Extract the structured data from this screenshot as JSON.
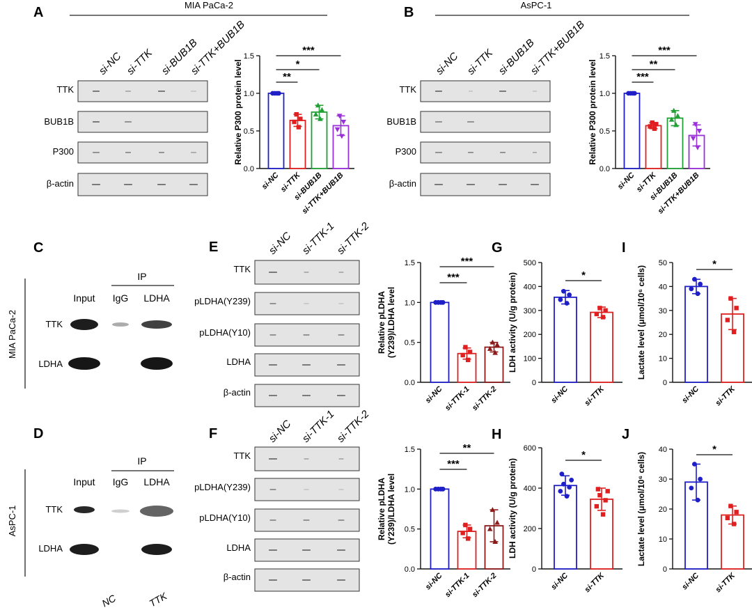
{
  "panels": {
    "A": {
      "letter": "A",
      "cell_line": "MIA PaCa-2",
      "lanes": [
        "si-NC",
        "si-TTK",
        "si-BUB1B",
        "si-TTK+BUB1B"
      ],
      "blots": [
        "TTK",
        "BUB1B",
        "P300",
        "β-actin"
      ]
    },
    "B": {
      "letter": "B",
      "cell_line": "AsPC-1",
      "lanes": [
        "si-NC",
        "si-TTK",
        "si-BUB1B",
        "si-TTK+BUB1B"
      ],
      "blots": [
        "TTK",
        "BUB1B",
        "P300",
        "β-actin"
      ]
    },
    "C": {
      "letter": "C",
      "cell_line": "MIA PaCa-2",
      "ip_label": "IP",
      "lanes": [
        "Input",
        "IgG",
        "LDHA"
      ],
      "blots": [
        "TTK",
        "LDHA"
      ]
    },
    "D": {
      "letter": "D",
      "cell_line": "AsPC-1",
      "ip_label": "IP",
      "lanes": [
        "Input",
        "IgG",
        "LDHA"
      ],
      "blots": [
        "TTK",
        "LDHA"
      ]
    },
    "E": {
      "letter": "E",
      "lanes": [
        "si-NC",
        "si-TTK-1",
        "si-TTK-2"
      ],
      "blots": [
        "TTK",
        "pLDHA(Y239)",
        "pLDHA(Y10)",
        "LDHA",
        "β-actin"
      ]
    },
    "F": {
      "letter": "F",
      "lanes": [
        "si-NC",
        "si-TTK-1",
        "si-TTK-2"
      ],
      "blots": [
        "TTK",
        "pLDHA(Y239)",
        "pLDHA(Y10)",
        "LDHA",
        "β-actin"
      ]
    },
    "G": {
      "letter": "G"
    },
    "H": {
      "letter": "H"
    },
    "I": {
      "letter": "I"
    },
    "J": {
      "letter": "J"
    }
  },
  "bottom_cut_labels": [
    "NC",
    "TTK"
  ],
  "colors": {
    "nc": "#1f1fc8",
    "ttk": "#e02020",
    "bub1b": "#22a035",
    "combo": "#9a30d8",
    "ttk2": "#8b1a1a"
  },
  "chart_data": [
    {
      "panel": "A",
      "type": "bar",
      "ylabel": "Relative P300 protein level",
      "ylim": [
        0,
        1.5
      ],
      "yticks": [
        "0.0",
        "0.5",
        "1.0",
        "1.5"
      ],
      "categories": [
        "si-NC",
        "si-TTK",
        "si-BUB1B",
        "si-TTK+BUB1B"
      ],
      "values": [
        1.0,
        0.64,
        0.75,
        0.57
      ],
      "errors": [
        0,
        0.08,
        0.09,
        0.13
      ],
      "points": [
        [
          1,
          1,
          1,
          1
        ],
        [
          0.55,
          0.62,
          0.66,
          0.72
        ],
        [
          0.66,
          0.72,
          0.78,
          0.84
        ],
        [
          0.43,
          0.52,
          0.62,
          0.7
        ]
      ],
      "significance": [
        {
          "from": 0,
          "to": 1,
          "label": "**"
        },
        {
          "from": 0,
          "to": 2,
          "label": "*"
        },
        {
          "from": 0,
          "to": 3,
          "label": "***"
        }
      ]
    },
    {
      "panel": "B",
      "type": "bar",
      "ylabel": "Relative P300 protein level",
      "ylim": [
        0,
        1.5
      ],
      "yticks": [
        "0.0",
        "0.5",
        "1.0",
        "1.5"
      ],
      "categories": [
        "si-NC",
        "si-TTK",
        "si-BUB1B",
        "si-TTK+BUB1B"
      ],
      "values": [
        1.0,
        0.57,
        0.67,
        0.44
      ],
      "errors": [
        0,
        0.04,
        0.1,
        0.14
      ],
      "points": [
        [
          1,
          1,
          1,
          1
        ],
        [
          0.53,
          0.56,
          0.59,
          0.61
        ],
        [
          0.58,
          0.65,
          0.7,
          0.77
        ],
        [
          0.28,
          0.4,
          0.5,
          0.59
        ]
      ],
      "significance": [
        {
          "from": 0,
          "to": 1,
          "label": "***"
        },
        {
          "from": 0,
          "to": 2,
          "label": "**"
        },
        {
          "from": 0,
          "to": 3,
          "label": "***"
        }
      ]
    },
    {
      "panel": "E",
      "type": "bar",
      "ylabel": "Relative pLDHA (Y239)/LDHA level",
      "ylim": [
        0,
        1.5
      ],
      "yticks": [
        "0.0",
        "0.5",
        "1.0",
        "1.5"
      ],
      "categories": [
        "si-NC",
        "si-TTK-1",
        "si-TTK-2"
      ],
      "values": [
        1.0,
        0.36,
        0.44
      ],
      "errors": [
        0,
        0.07,
        0.06
      ],
      "points": [
        [
          1,
          1,
          1,
          1
        ],
        [
          0.28,
          0.34,
          0.38,
          0.44
        ],
        [
          0.37,
          0.42,
          0.47,
          0.5
        ]
      ],
      "significance": [
        {
          "from": 0,
          "to": 1,
          "label": "***"
        },
        {
          "from": 0,
          "to": 2,
          "label": "***"
        }
      ]
    },
    {
      "panel": "F",
      "type": "bar",
      "ylabel": "Relative pLDHA (Y239)/LDHA level",
      "ylim": [
        0,
        1.5
      ],
      "yticks": [
        "0.0",
        "0.5",
        "1.0",
        "1.5"
      ],
      "categories": [
        "si-NC",
        "si-TTK-1",
        "si-TTK-2"
      ],
      "values": [
        1.0,
        0.47,
        0.54
      ],
      "errors": [
        0,
        0.08,
        0.2
      ],
      "points": [
        [
          1,
          1,
          1,
          1
        ],
        [
          0.38,
          0.45,
          0.5,
          0.55
        ],
        [
          0.34,
          0.5,
          0.58,
          0.74
        ]
      ],
      "significance": [
        {
          "from": 0,
          "to": 1,
          "label": "***"
        },
        {
          "from": 0,
          "to": 2,
          "label": "**"
        }
      ]
    },
    {
      "panel": "G",
      "type": "bar",
      "ylabel": "LDH activity (U/g protein)",
      "ylim": [
        0,
        500
      ],
      "yticks": [
        "0",
        "100",
        "200",
        "300",
        "400",
        "500"
      ],
      "categories": [
        "si-NC",
        "si-TTK"
      ],
      "values": [
        355,
        292
      ],
      "errors": [
        28,
        22
      ],
      "points": [
        [
          330,
          345,
          365,
          380
        ],
        [
          272,
          285,
          300,
          310
        ]
      ],
      "significance": [
        {
          "from": 0,
          "to": 1,
          "label": "*"
        }
      ]
    },
    {
      "panel": "H",
      "type": "bar",
      "ylabel": "LDH activity (U/g protein)",
      "ylim": [
        0,
        600
      ],
      "yticks": [
        "0",
        "200",
        "400",
        "600"
      ],
      "categories": [
        "si-NC",
        "si-TTK"
      ],
      "values": [
        413,
        345
      ],
      "errors": [
        48,
        55
      ],
      "points": [
        [
          360,
          385,
          405,
          420,
          440,
          470
        ],
        [
          270,
          310,
          340,
          365,
          385,
          395
        ]
      ],
      "significance": [
        {
          "from": 0,
          "to": 1,
          "label": "*"
        }
      ]
    },
    {
      "panel": "I",
      "type": "bar",
      "ylabel": "Lactate level (μmol/10⁶ cells)",
      "ylim": [
        0,
        50
      ],
      "yticks": [
        "0",
        "10",
        "20",
        "30",
        "40",
        "50"
      ],
      "categories": [
        "si-NC",
        "si-TTK"
      ],
      "values": [
        40,
        28.5
      ],
      "errors": [
        3,
        6.5
      ],
      "points": [
        [
          37,
          39,
          41,
          43
        ],
        [
          21,
          26,
          31,
          35
        ]
      ],
      "significance": [
        {
          "from": 0,
          "to": 1,
          "label": "*"
        }
      ]
    },
    {
      "panel": "J",
      "type": "bar",
      "ylabel": "Lactate level (μmol/10⁶ cells)",
      "ylim": [
        0,
        40
      ],
      "yticks": [
        "0",
        "10",
        "20",
        "30",
        "40"
      ],
      "categories": [
        "si-NC",
        "si-TTK"
      ],
      "values": [
        29,
        18
      ],
      "errors": [
        6,
        3
      ],
      "points": [
        [
          23,
          27,
          30,
          35
        ],
        [
          15,
          17,
          19,
          21
        ]
      ],
      "significance": [
        {
          "from": 0,
          "to": 1,
          "label": "*"
        }
      ]
    }
  ]
}
